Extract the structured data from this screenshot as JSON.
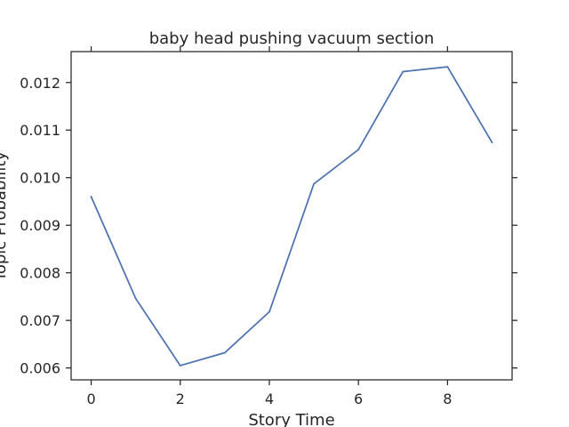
{
  "chart_data": {
    "type": "line",
    "title": "baby head pushing vacuum section",
    "xlabel": "Story Time",
    "ylabel": "Topic Probability",
    "x": [
      0,
      1,
      2,
      3,
      4,
      5,
      6,
      7,
      8,
      9
    ],
    "series": [
      {
        "values": [
          0.0096,
          0.00746,
          0.00605,
          0.00632,
          0.00718,
          0.00987,
          0.01059,
          0.01223,
          0.01233,
          0.01074
        ]
      }
    ],
    "xlim": [
      -0.45,
      9.45
    ],
    "ylim": [
      0.00575,
      0.01265
    ],
    "xticks": [
      0,
      2,
      4,
      6,
      8
    ],
    "xtick_labels": [
      "0",
      "2",
      "4",
      "6",
      "8"
    ],
    "yticks": [
      0.006,
      0.007,
      0.008,
      0.009,
      0.01,
      0.011,
      0.012
    ],
    "ytick_labels": [
      "0.006",
      "0.007",
      "0.008",
      "0.009",
      "0.010",
      "0.011",
      "0.012"
    ],
    "grid": false,
    "line_color": "#4c72b0"
  }
}
